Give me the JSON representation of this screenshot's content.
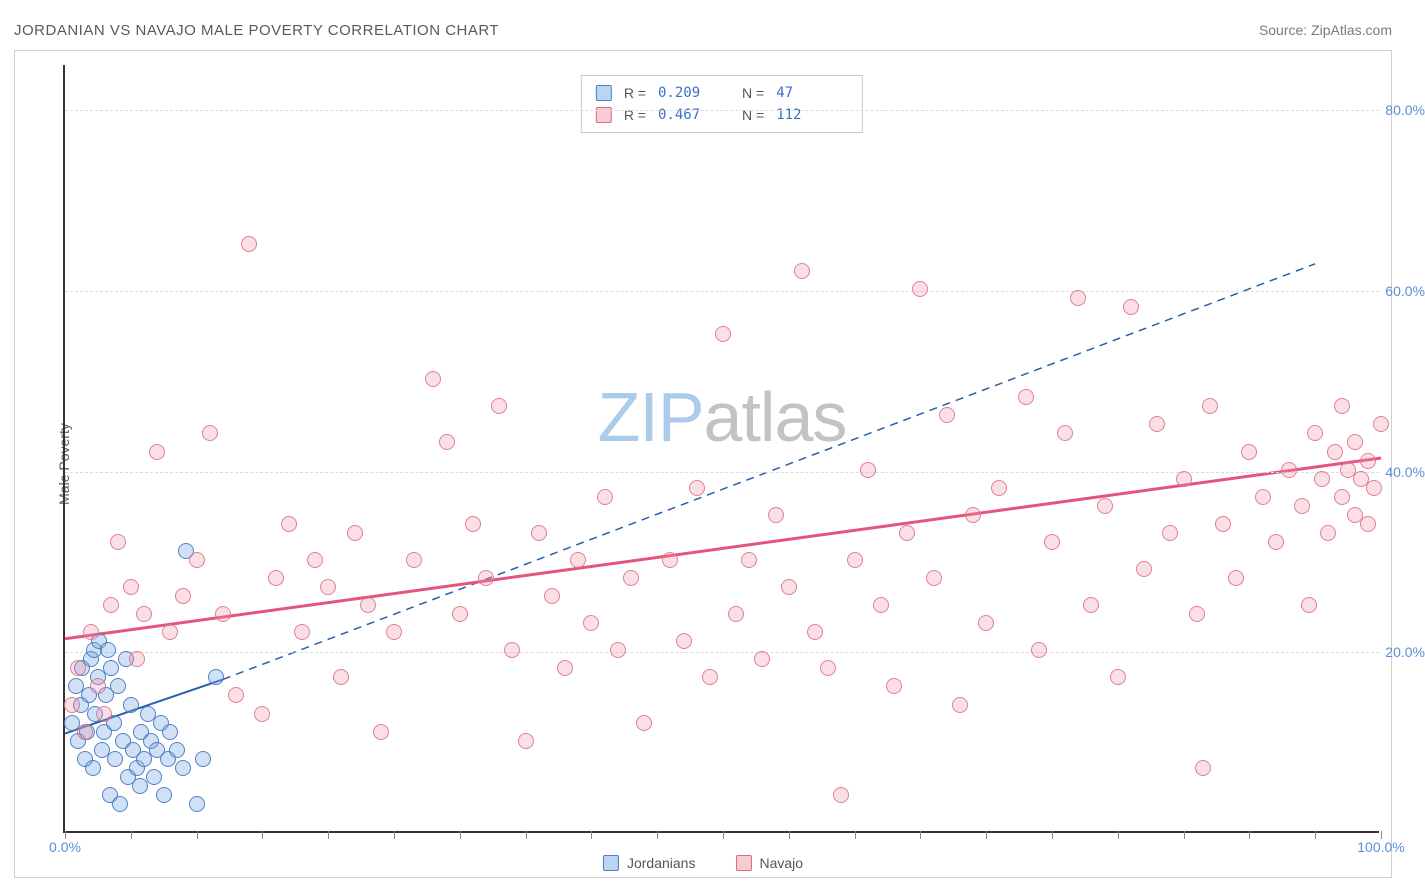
{
  "title": "JORDANIAN VS NAVAJO MALE POVERTY CORRELATION CHART",
  "source_label": "Source: ",
  "source_name": "ZipAtlas.com",
  "ylabel": "Male Poverty",
  "watermark": {
    "left": "ZIP",
    "right": "atlas"
  },
  "chart": {
    "type": "scatter",
    "xlim": [
      0,
      100
    ],
    "ylim": [
      0,
      85
    ],
    "x_ticks": {
      "minor_step": 5,
      "labels": [
        {
          "v": 0,
          "t": "0.0%"
        },
        {
          "v": 100,
          "t": "100.0%"
        }
      ]
    },
    "y_grid": [
      {
        "v": 20,
        "label": "20.0%"
      },
      {
        "v": 40,
        "label": "40.0%"
      },
      {
        "v": 60,
        "label": "60.0%"
      },
      {
        "v": 80,
        "label": "80.0%"
      }
    ],
    "background": "#ffffff",
    "grid_color": "#dcdcdc",
    "axis_color": "#333333",
    "series": [
      {
        "name": "Jordanians",
        "color_fill": "rgba(120,170,230,0.35)",
        "color_stroke": "#4a80c0",
        "R": "0.209",
        "N": "47",
        "trend": {
          "x1": 0,
          "y1": 11,
          "x2": 12,
          "y2": 17,
          "dash": false,
          "ext_x2": 95,
          "ext_y2": 63,
          "ext_dash": true,
          "stroke": "#2b5fa8",
          "width": 2
        },
        "points": [
          {
            "x": 0.5,
            "y": 12
          },
          {
            "x": 0.8,
            "y": 16
          },
          {
            "x": 1.0,
            "y": 10
          },
          {
            "x": 1.2,
            "y": 14
          },
          {
            "x": 1.3,
            "y": 18
          },
          {
            "x": 1.5,
            "y": 8
          },
          {
            "x": 1.7,
            "y": 11
          },
          {
            "x": 1.8,
            "y": 15
          },
          {
            "x": 2.0,
            "y": 19
          },
          {
            "x": 2.1,
            "y": 7
          },
          {
            "x": 2.2,
            "y": 20
          },
          {
            "x": 2.3,
            "y": 13
          },
          {
            "x": 2.5,
            "y": 17
          },
          {
            "x": 2.6,
            "y": 21
          },
          {
            "x": 2.8,
            "y": 9
          },
          {
            "x": 3.0,
            "y": 11
          },
          {
            "x": 3.1,
            "y": 15
          },
          {
            "x": 3.3,
            "y": 20
          },
          {
            "x": 3.4,
            "y": 4
          },
          {
            "x": 3.5,
            "y": 18
          },
          {
            "x": 3.7,
            "y": 12
          },
          {
            "x": 3.8,
            "y": 8
          },
          {
            "x": 4.0,
            "y": 16
          },
          {
            "x": 4.2,
            "y": 3
          },
          {
            "x": 4.4,
            "y": 10
          },
          {
            "x": 4.6,
            "y": 19
          },
          {
            "x": 4.8,
            "y": 6
          },
          {
            "x": 5.0,
            "y": 14
          },
          {
            "x": 5.2,
            "y": 9
          },
          {
            "x": 5.5,
            "y": 7
          },
          {
            "x": 5.7,
            "y": 5
          },
          {
            "x": 5.8,
            "y": 11
          },
          {
            "x": 6.0,
            "y": 8
          },
          {
            "x": 6.3,
            "y": 13
          },
          {
            "x": 6.5,
            "y": 10
          },
          {
            "x": 6.8,
            "y": 6
          },
          {
            "x": 7.0,
            "y": 9
          },
          {
            "x": 7.3,
            "y": 12
          },
          {
            "x": 7.5,
            "y": 4
          },
          {
            "x": 7.8,
            "y": 8
          },
          {
            "x": 8.0,
            "y": 11
          },
          {
            "x": 8.5,
            "y": 9
          },
          {
            "x": 9.0,
            "y": 7
          },
          {
            "x": 9.2,
            "y": 31
          },
          {
            "x": 10.0,
            "y": 3
          },
          {
            "x": 10.5,
            "y": 8
          },
          {
            "x": 11.5,
            "y": 17
          }
        ]
      },
      {
        "name": "Navajo",
        "color_fill": "rgba(240,150,170,0.3)",
        "color_stroke": "#d86a88",
        "R": "0.467",
        "N": "112",
        "trend": {
          "x1": 0,
          "y1": 21.5,
          "x2": 100,
          "y2": 41.5,
          "dash": false,
          "stroke": "#e5547a",
          "width": 3
        },
        "points": [
          {
            "x": 0.5,
            "y": 14
          },
          {
            "x": 1.0,
            "y": 18
          },
          {
            "x": 1.5,
            "y": 11
          },
          {
            "x": 2.0,
            "y": 22
          },
          {
            "x": 2.5,
            "y": 16
          },
          {
            "x": 3.0,
            "y": 13
          },
          {
            "x": 3.5,
            "y": 25
          },
          {
            "x": 4.0,
            "y": 32
          },
          {
            "x": 5.0,
            "y": 27
          },
          {
            "x": 5.5,
            "y": 19
          },
          {
            "x": 6.0,
            "y": 24
          },
          {
            "x": 7.0,
            "y": 42
          },
          {
            "x": 8.0,
            "y": 22
          },
          {
            "x": 9.0,
            "y": 26
          },
          {
            "x": 10.0,
            "y": 30
          },
          {
            "x": 11.0,
            "y": 44
          },
          {
            "x": 12.0,
            "y": 24
          },
          {
            "x": 13.0,
            "y": 15
          },
          {
            "x": 14.0,
            "y": 65
          },
          {
            "x": 15.0,
            "y": 13
          },
          {
            "x": 16.0,
            "y": 28
          },
          {
            "x": 17.0,
            "y": 34
          },
          {
            "x": 18.0,
            "y": 22
          },
          {
            "x": 19.0,
            "y": 30
          },
          {
            "x": 20.0,
            "y": 27
          },
          {
            "x": 21.0,
            "y": 17
          },
          {
            "x": 22.0,
            "y": 33
          },
          {
            "x": 23.0,
            "y": 25
          },
          {
            "x": 24.0,
            "y": 11
          },
          {
            "x": 25.0,
            "y": 22
          },
          {
            "x": 26.5,
            "y": 30
          },
          {
            "x": 28.0,
            "y": 50
          },
          {
            "x": 29.0,
            "y": 43
          },
          {
            "x": 30.0,
            "y": 24
          },
          {
            "x": 31.0,
            "y": 34
          },
          {
            "x": 32.0,
            "y": 28
          },
          {
            "x": 33.0,
            "y": 47
          },
          {
            "x": 34.0,
            "y": 20
          },
          {
            "x": 35.0,
            "y": 10
          },
          {
            "x": 36.0,
            "y": 33
          },
          {
            "x": 37.0,
            "y": 26
          },
          {
            "x": 38.0,
            "y": 18
          },
          {
            "x": 39.0,
            "y": 30
          },
          {
            "x": 40.0,
            "y": 23
          },
          {
            "x": 41.0,
            "y": 37
          },
          {
            "x": 42.0,
            "y": 20
          },
          {
            "x": 43.0,
            "y": 28
          },
          {
            "x": 44.0,
            "y": 12
          },
          {
            "x": 46.0,
            "y": 30
          },
          {
            "x": 47.0,
            "y": 21
          },
          {
            "x": 48.0,
            "y": 38
          },
          {
            "x": 49.0,
            "y": 17
          },
          {
            "x": 50.0,
            "y": 55
          },
          {
            "x": 51.0,
            "y": 24
          },
          {
            "x": 52.0,
            "y": 30
          },
          {
            "x": 53.0,
            "y": 19
          },
          {
            "x": 54.0,
            "y": 35
          },
          {
            "x": 55.0,
            "y": 27
          },
          {
            "x": 56.0,
            "y": 62
          },
          {
            "x": 57.0,
            "y": 22
          },
          {
            "x": 58.0,
            "y": 18
          },
          {
            "x": 59.0,
            "y": 4
          },
          {
            "x": 60.0,
            "y": 30
          },
          {
            "x": 61.0,
            "y": 40
          },
          {
            "x": 62.0,
            "y": 25
          },
          {
            "x": 63.0,
            "y": 16
          },
          {
            "x": 64.0,
            "y": 33
          },
          {
            "x": 65.0,
            "y": 60
          },
          {
            "x": 66.0,
            "y": 28
          },
          {
            "x": 67.0,
            "y": 46
          },
          {
            "x": 68.0,
            "y": 14
          },
          {
            "x": 69.0,
            "y": 35
          },
          {
            "x": 70.0,
            "y": 23
          },
          {
            "x": 71.0,
            "y": 38
          },
          {
            "x": 73.0,
            "y": 48
          },
          {
            "x": 74.0,
            "y": 20
          },
          {
            "x": 75.0,
            "y": 32
          },
          {
            "x": 76.0,
            "y": 44
          },
          {
            "x": 77.0,
            "y": 59
          },
          {
            "x": 78.0,
            "y": 25
          },
          {
            "x": 79.0,
            "y": 36
          },
          {
            "x": 80.0,
            "y": 17
          },
          {
            "x": 81.0,
            "y": 58
          },
          {
            "x": 82.0,
            "y": 29
          },
          {
            "x": 83.0,
            "y": 45
          },
          {
            "x": 84.0,
            "y": 33
          },
          {
            "x": 85.0,
            "y": 39
          },
          {
            "x": 86.0,
            "y": 24
          },
          {
            "x": 86.5,
            "y": 7
          },
          {
            "x": 87.0,
            "y": 47
          },
          {
            "x": 88.0,
            "y": 34
          },
          {
            "x": 89.0,
            "y": 28
          },
          {
            "x": 90.0,
            "y": 42
          },
          {
            "x": 91.0,
            "y": 37
          },
          {
            "x": 92.0,
            "y": 32
          },
          {
            "x": 93.0,
            "y": 40
          },
          {
            "x": 94.0,
            "y": 36
          },
          {
            "x": 94.5,
            "y": 25
          },
          {
            "x": 95.0,
            "y": 44
          },
          {
            "x": 95.5,
            "y": 39
          },
          {
            "x": 96.0,
            "y": 33
          },
          {
            "x": 96.5,
            "y": 42
          },
          {
            "x": 97.0,
            "y": 37
          },
          {
            "x": 97.0,
            "y": 47
          },
          {
            "x": 97.5,
            "y": 40
          },
          {
            "x": 98.0,
            "y": 35
          },
          {
            "x": 98.0,
            "y": 43
          },
          {
            "x": 98.5,
            "y": 39
          },
          {
            "x": 99.0,
            "y": 41
          },
          {
            "x": 99.0,
            "y": 34
          },
          {
            "x": 99.5,
            "y": 38
          },
          {
            "x": 100.0,
            "y": 45
          }
        ]
      }
    ]
  },
  "legend_top": {
    "r_label": "R =",
    "n_label": "N ="
  },
  "legend_bottom": [
    {
      "swatch": "blue",
      "label": "Jordanians"
    },
    {
      "swatch": "pink",
      "label": "Navajo"
    }
  ]
}
